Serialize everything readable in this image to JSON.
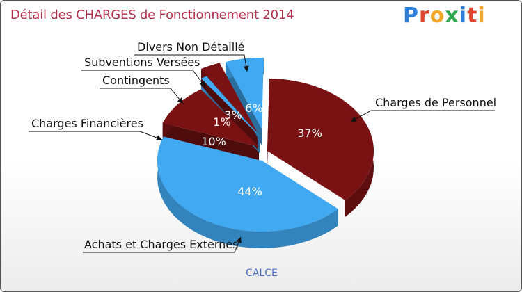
{
  "title": "Détail des CHARGES de Fonctionnement 2014",
  "logo": {
    "text": "Proxiti",
    "letters": [
      {
        "ch": "P",
        "color": "#2f7fd8"
      },
      {
        "ch": "r",
        "color": "#e0442e"
      },
      {
        "ch": "o",
        "color": "#f2a82a"
      },
      {
        "ch": "x",
        "color": "#2fa84f"
      },
      {
        "ch": "i",
        "color": "#2f7fd8"
      },
      {
        "ch": "t",
        "color": "#e0442e"
      },
      {
        "ch": "i",
        "color": "#f2a82a"
      }
    ]
  },
  "caption": "CALCE",
  "chart_data": {
    "type": "pie",
    "title": "Détail des CHARGES de Fonctionnement 2014",
    "slices": [
      {
        "label": "Charges de Personnel",
        "value": 37,
        "pct_label": "37%",
        "color": "#7a1214"
      },
      {
        "label": "Achats et Charges Externes",
        "value": 44,
        "pct_label": "44%",
        "color": "#41a9f2"
      },
      {
        "label": "Charges Financières",
        "value": 10,
        "pct_label": "10%",
        "color": "#7a1214"
      },
      {
        "label": "Contingents",
        "value": 1,
        "pct_label": "1%",
        "color": "#41a9f2"
      },
      {
        "label": "Subventions Versées",
        "value": 3,
        "pct_label": "3%",
        "color": "#7a1214"
      },
      {
        "label": "Divers Non Détaillé",
        "value": 6,
        "pct_label": "6%",
        "color": "#41a9f2"
      }
    ]
  }
}
